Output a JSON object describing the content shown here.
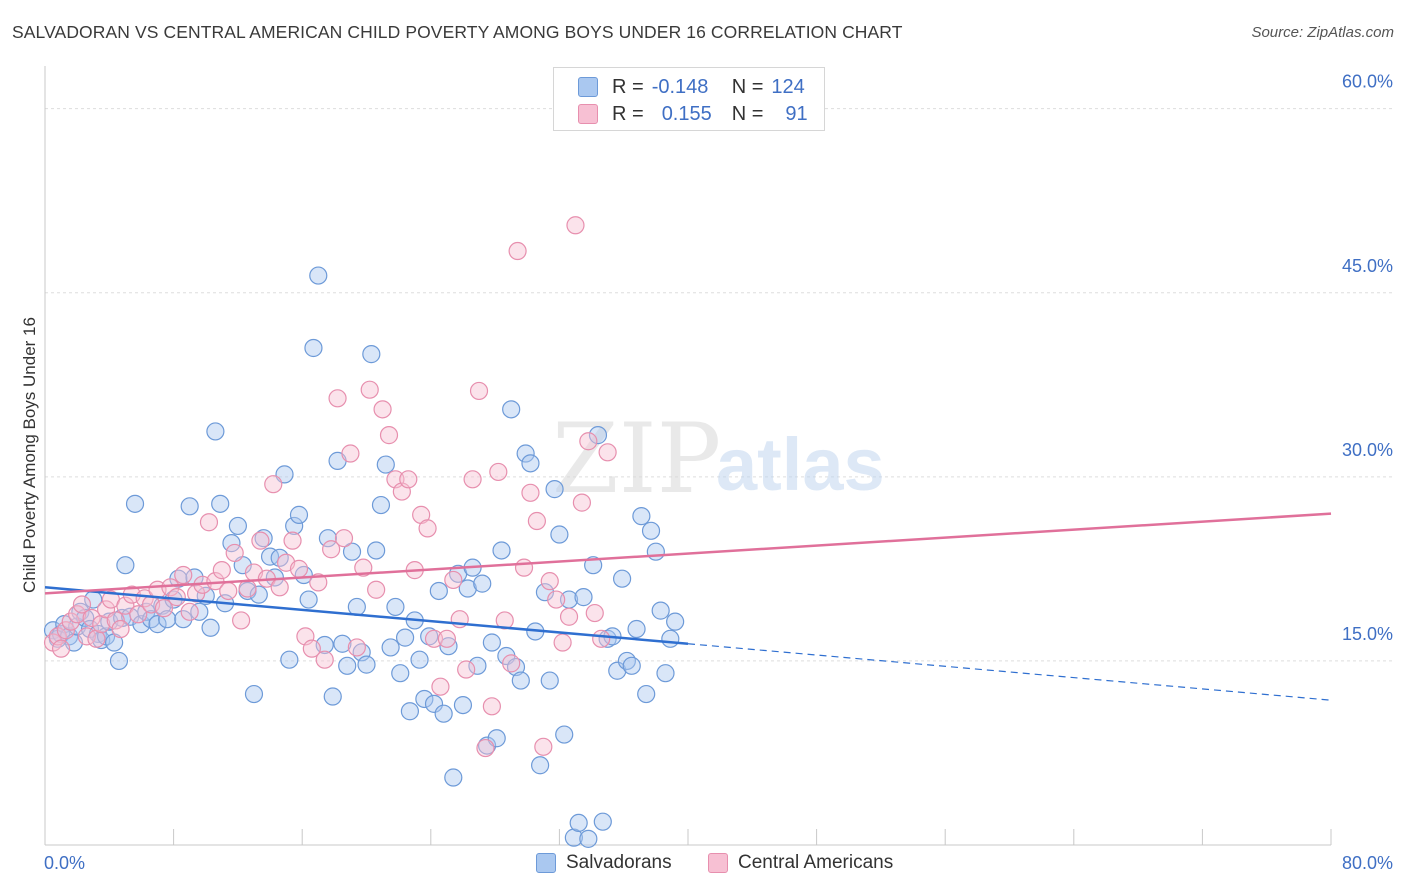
{
  "header": {
    "title": "SALVADORAN VS CENTRAL AMERICAN CHILD POVERTY AMONG BOYS UNDER 16 CORRELATION CHART",
    "source": "Source: ZipAtlas.com"
  },
  "legend": {
    "rows": [
      {
        "r_label": "R =",
        "r_value": "-0.148",
        "n_label": "N =",
        "n_value": "124"
      },
      {
        "r_label": "R =",
        "r_value": "0.155",
        "n_label": "N =",
        "n_value": "91"
      }
    ]
  },
  "bottom_legend": {
    "items": [
      "Salvadorans",
      "Central Americans"
    ]
  },
  "colors": {
    "blue_fill": "#aac8f0",
    "blue_stroke": "#6d9ad8",
    "blue_line": "#2f6fd0",
    "pink_fill": "#f7c0d3",
    "pink_stroke": "#e78fae",
    "pink_line": "#e0709a",
    "tick_label": "#3f6fc4",
    "grid": "#dddddd"
  },
  "chart_data": {
    "type": "scatter",
    "title": "SALVADORAN VS CENTRAL AMERICAN CHILD POVERTY AMONG BOYS UNDER 16 CORRELATION CHART",
    "xlabel": "",
    "ylabel": "Child Poverty Among Boys Under 16",
    "xlim": [
      0,
      80
    ],
    "ylim": [
      0,
      62.5
    ],
    "x_tick_labels": [
      "0.0%",
      "80.0%"
    ],
    "y_ticks": [
      15,
      30,
      45,
      60
    ],
    "y_tick_labels": [
      "15.0%",
      "30.0%",
      "45.0%",
      "60.0%"
    ],
    "grid": true,
    "legend_position": "top-center",
    "watermark": {
      "part1": "ZIP",
      "part2": "atlas"
    },
    "series": [
      {
        "name": "Salvadorans",
        "color": "#6d9ad8",
        "r": -0.148,
        "n": 124,
        "trend": {
          "x0": 0,
          "y0": 21.0,
          "x1": 40,
          "y1": 16.4,
          "dash_x1": 80,
          "dash_y1": 11.8
        },
        "points": [
          [
            0.5,
            17.5
          ],
          [
            0.8,
            16.8
          ],
          [
            1.0,
            17.2
          ],
          [
            1.2,
            18.0
          ],
          [
            1.5,
            17.0
          ],
          [
            1.8,
            16.5
          ],
          [
            2.0,
            17.8
          ],
          [
            2.2,
            19.0
          ],
          [
            2.5,
            18.5
          ],
          [
            2.8,
            17.6
          ],
          [
            3.0,
            20.0
          ],
          [
            3.3,
            17.2
          ],
          [
            3.5,
            16.7
          ],
          [
            3.8,
            17.0
          ],
          [
            4.0,
            18.2
          ],
          [
            4.3,
            16.5
          ],
          [
            4.6,
            15.0
          ],
          [
            4.8,
            18.5
          ],
          [
            5.0,
            22.8
          ],
          [
            5.3,
            18.6
          ],
          [
            5.6,
            27.8
          ],
          [
            6.0,
            18.0
          ],
          [
            6.3,
            19.0
          ],
          [
            6.6,
            18.4
          ],
          [
            7.0,
            18.0
          ],
          [
            7.3,
            19.5
          ],
          [
            7.6,
            18.4
          ],
          [
            8.0,
            20.0
          ],
          [
            8.3,
            21.7
          ],
          [
            8.6,
            18.4
          ],
          [
            9.0,
            27.6
          ],
          [
            9.3,
            21.8
          ],
          [
            9.6,
            19.0
          ],
          [
            10.0,
            20.3
          ],
          [
            10.3,
            17.7
          ],
          [
            10.6,
            33.7
          ],
          [
            10.9,
            27.8
          ],
          [
            11.2,
            19.7
          ],
          [
            11.6,
            24.6
          ],
          [
            12.0,
            26.0
          ],
          [
            12.3,
            22.8
          ],
          [
            12.6,
            20.7
          ],
          [
            13.0,
            12.3
          ],
          [
            13.3,
            20.4
          ],
          [
            13.6,
            25.0
          ],
          [
            14.0,
            23.5
          ],
          [
            14.3,
            21.8
          ],
          [
            14.6,
            23.4
          ],
          [
            14.9,
            30.2
          ],
          [
            15.2,
            15.1
          ],
          [
            15.5,
            26.0
          ],
          [
            15.8,
            26.9
          ],
          [
            16.1,
            22.0
          ],
          [
            16.4,
            20.0
          ],
          [
            16.7,
            40.5
          ],
          [
            17.0,
            46.4
          ],
          [
            17.4,
            16.3
          ],
          [
            17.6,
            25.0
          ],
          [
            17.9,
            12.1
          ],
          [
            18.2,
            31.3
          ],
          [
            18.5,
            16.4
          ],
          [
            18.8,
            14.6
          ],
          [
            19.1,
            23.9
          ],
          [
            19.4,
            19.4
          ],
          [
            19.7,
            15.7
          ],
          [
            20.0,
            14.7
          ],
          [
            20.3,
            40.0
          ],
          [
            20.6,
            24.0
          ],
          [
            20.9,
            27.7
          ],
          [
            21.2,
            31.0
          ],
          [
            21.5,
            16.1
          ],
          [
            21.8,
            19.4
          ],
          [
            22.1,
            14.0
          ],
          [
            22.4,
            16.9
          ],
          [
            22.7,
            10.9
          ],
          [
            23.0,
            18.3
          ],
          [
            23.3,
            15.1
          ],
          [
            23.6,
            11.9
          ],
          [
            23.9,
            17.0
          ],
          [
            24.2,
            11.5
          ],
          [
            24.5,
            20.7
          ],
          [
            24.8,
            10.7
          ],
          [
            25.1,
            16.2
          ],
          [
            25.4,
            5.5
          ],
          [
            25.7,
            22.1
          ],
          [
            26.0,
            11.4
          ],
          [
            26.3,
            20.9
          ],
          [
            26.6,
            22.6
          ],
          [
            26.9,
            14.6
          ],
          [
            27.2,
            21.3
          ],
          [
            27.5,
            8.1
          ],
          [
            27.8,
            16.5
          ],
          [
            28.1,
            8.7
          ],
          [
            28.4,
            24.0
          ],
          [
            28.7,
            15.4
          ],
          [
            29.0,
            35.5
          ],
          [
            29.3,
            14.5
          ],
          [
            29.6,
            13.4
          ],
          [
            29.9,
            31.9
          ],
          [
            30.2,
            31.1
          ],
          [
            30.5,
            17.4
          ],
          [
            30.8,
            6.5
          ],
          [
            31.1,
            20.6
          ],
          [
            31.4,
            13.4
          ],
          [
            31.7,
            29.0
          ],
          [
            32.0,
            25.3
          ],
          [
            32.3,
            9.0
          ],
          [
            32.6,
            20.0
          ],
          [
            32.9,
            0.6
          ],
          [
            33.2,
            1.8
          ],
          [
            33.5,
            20.2
          ],
          [
            33.8,
            0.5
          ],
          [
            34.1,
            22.8
          ],
          [
            34.4,
            33.4
          ],
          [
            34.7,
            1.9
          ],
          [
            35.0,
            16.8
          ],
          [
            35.3,
            17.0
          ],
          [
            35.6,
            14.2
          ],
          [
            35.9,
            21.7
          ],
          [
            36.2,
            15.0
          ],
          [
            36.5,
            14.6
          ],
          [
            36.8,
            17.6
          ],
          [
            37.1,
            26.8
          ],
          [
            37.4,
            12.3
          ],
          [
            37.7,
            25.6
          ],
          [
            38.0,
            23.9
          ],
          [
            38.3,
            19.1
          ],
          [
            38.6,
            14.0
          ],
          [
            38.9,
            16.8
          ],
          [
            39.2,
            18.2
          ]
        ]
      },
      {
        "name": "Central Americans",
        "color": "#e78fae",
        "r": 0.155,
        "n": 91,
        "trend": {
          "x0": 0,
          "y0": 20.5,
          "x1": 80,
          "y1": 27.0
        },
        "points": [
          [
            0.5,
            16.5
          ],
          [
            0.8,
            17.0
          ],
          [
            1.0,
            16.0
          ],
          [
            1.3,
            17.5
          ],
          [
            1.6,
            18.2
          ],
          [
            2.0,
            18.8
          ],
          [
            2.3,
            19.6
          ],
          [
            2.6,
            17.0
          ],
          [
            2.9,
            18.5
          ],
          [
            3.2,
            16.8
          ],
          [
            3.5,
            18.0
          ],
          [
            3.8,
            19.2
          ],
          [
            4.1,
            20.0
          ],
          [
            4.4,
            18.3
          ],
          [
            4.7,
            17.6
          ],
          [
            5.0,
            19.5
          ],
          [
            5.4,
            20.4
          ],
          [
            5.8,
            18.8
          ],
          [
            6.2,
            20.1
          ],
          [
            6.6,
            19.6
          ],
          [
            7.0,
            20.8
          ],
          [
            7.4,
            19.3
          ],
          [
            7.8,
            21.0
          ],
          [
            8.2,
            20.2
          ],
          [
            8.6,
            22.0
          ],
          [
            9.0,
            19.0
          ],
          [
            9.4,
            20.5
          ],
          [
            9.8,
            21.2
          ],
          [
            10.2,
            26.3
          ],
          [
            10.6,
            21.5
          ],
          [
            11.0,
            22.4
          ],
          [
            11.4,
            20.7
          ],
          [
            11.8,
            23.8
          ],
          [
            12.2,
            18.3
          ],
          [
            12.6,
            20.9
          ],
          [
            13.0,
            22.2
          ],
          [
            13.4,
            24.8
          ],
          [
            13.8,
            21.7
          ],
          [
            14.2,
            29.4
          ],
          [
            14.6,
            21.0
          ],
          [
            15.0,
            23.0
          ],
          [
            15.4,
            24.8
          ],
          [
            15.8,
            22.5
          ],
          [
            16.2,
            17.0
          ],
          [
            16.6,
            16.0
          ],
          [
            17.0,
            21.4
          ],
          [
            17.4,
            15.1
          ],
          [
            17.8,
            24.1
          ],
          [
            18.2,
            36.4
          ],
          [
            18.6,
            25.0
          ],
          [
            19.0,
            31.9
          ],
          [
            19.4,
            16.1
          ],
          [
            19.8,
            22.6
          ],
          [
            20.2,
            37.1
          ],
          [
            20.6,
            20.8
          ],
          [
            21.0,
            35.5
          ],
          [
            21.4,
            33.4
          ],
          [
            21.8,
            29.8
          ],
          [
            22.2,
            28.8
          ],
          [
            22.6,
            29.8
          ],
          [
            23.0,
            22.4
          ],
          [
            23.4,
            26.9
          ],
          [
            23.8,
            25.8
          ],
          [
            24.2,
            16.8
          ],
          [
            24.6,
            12.9
          ],
          [
            25.0,
            16.8
          ],
          [
            25.4,
            21.6
          ],
          [
            25.8,
            18.4
          ],
          [
            26.2,
            14.3
          ],
          [
            26.6,
            29.8
          ],
          [
            27.0,
            37.0
          ],
          [
            27.4,
            7.9
          ],
          [
            27.8,
            11.3
          ],
          [
            28.2,
            30.4
          ],
          [
            28.6,
            18.3
          ],
          [
            29.0,
            14.8
          ],
          [
            29.4,
            48.4
          ],
          [
            29.8,
            22.6
          ],
          [
            30.2,
            28.7
          ],
          [
            30.6,
            26.4
          ],
          [
            31.0,
            8.0
          ],
          [
            31.4,
            21.5
          ],
          [
            31.8,
            20.0
          ],
          [
            32.2,
            16.5
          ],
          [
            32.6,
            18.6
          ],
          [
            33.0,
            50.5
          ],
          [
            33.4,
            27.9
          ],
          [
            33.8,
            32.9
          ],
          [
            34.2,
            18.9
          ],
          [
            34.6,
            16.8
          ],
          [
            35.0,
            32.0
          ]
        ]
      }
    ]
  }
}
